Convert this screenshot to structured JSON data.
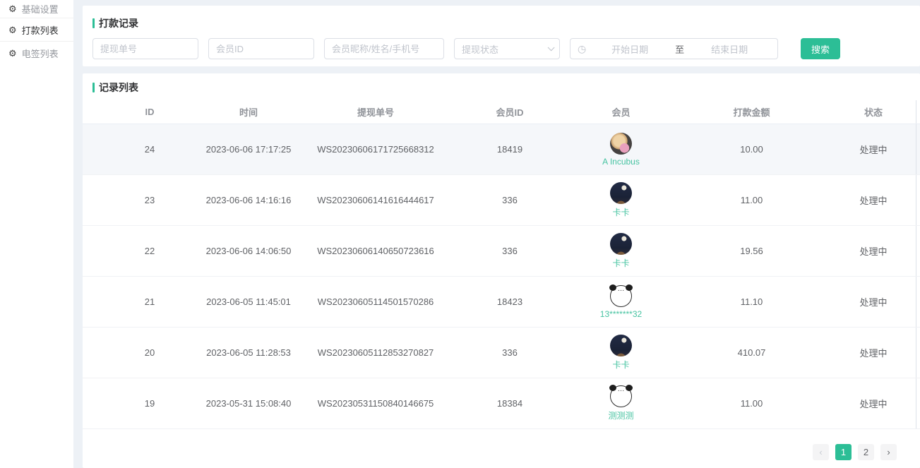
{
  "colors": {
    "accent": "#2cbe96",
    "page_background": "#edf1f6",
    "row_hover": "#f5f7fa"
  },
  "sidebar": {
    "items": [
      {
        "key": "basic-settings",
        "label": "基础设置",
        "active": false
      },
      {
        "key": "payment-list",
        "label": "打款列表",
        "active": true
      },
      {
        "key": "esign-list",
        "label": "电签列表",
        "active": false
      }
    ]
  },
  "filter_card": {
    "title": "打款记录",
    "inputs": {
      "order_no_placeholder": "提现单号",
      "member_id_placeholder": "会员ID",
      "member_info_placeholder": "会员昵称/姓名/手机号",
      "status_placeholder": "提现状态",
      "date_start_placeholder": "开始日期",
      "date_separator": "至",
      "date_end_placeholder": "结束日期",
      "clock_icon": "◷"
    },
    "search_button": "搜索"
  },
  "list_card": {
    "title": "记录列表",
    "columns": [
      "ID",
      "时间",
      "提现单号",
      "会员ID",
      "会员",
      "打款金额",
      "状态"
    ],
    "rows": [
      {
        "id": "24",
        "time": "2023-06-06 17:17:25",
        "order_no": "WS20230606171725668312",
        "member_id": "18419",
        "member_name": "A Incubus",
        "avatar": "dog-flowers",
        "amount": "10.00",
        "status": "处理中"
      },
      {
        "id": "23",
        "time": "2023-06-06 14:16:16",
        "order_no": "WS20230606141616444617",
        "member_id": "336",
        "member_name": "卡卡",
        "avatar": "night-sky",
        "amount": "11.00",
        "status": "处理中"
      },
      {
        "id": "22",
        "time": "2023-06-06 14:06:50",
        "order_no": "WS20230606140650723616",
        "member_id": "336",
        "member_name": "卡卡",
        "avatar": "night-sky",
        "amount": "19.56",
        "status": "处理中"
      },
      {
        "id": "21",
        "time": "2023-06-05 11:45:01",
        "order_no": "WS20230605114501570286",
        "member_id": "18423",
        "member_name": "13*******32",
        "avatar": "panda-meme",
        "amount": "11.10",
        "status": "处理中"
      },
      {
        "id": "20",
        "time": "2023-06-05 11:28:53",
        "order_no": "WS20230605112853270827",
        "member_id": "336",
        "member_name": "卡卡",
        "avatar": "night-sky",
        "amount": "410.07",
        "status": "处理中"
      },
      {
        "id": "19",
        "time": "2023-05-31 15:08:40",
        "order_no": "WS20230531150840146675",
        "member_id": "18384",
        "member_name": "测测测",
        "avatar": "panda-meme",
        "amount": "11.00",
        "status": "处理中"
      }
    ],
    "pagination": {
      "prev_icon": "‹",
      "pages": [
        "1",
        "2"
      ],
      "active_page": "1",
      "next_icon": "›"
    }
  }
}
